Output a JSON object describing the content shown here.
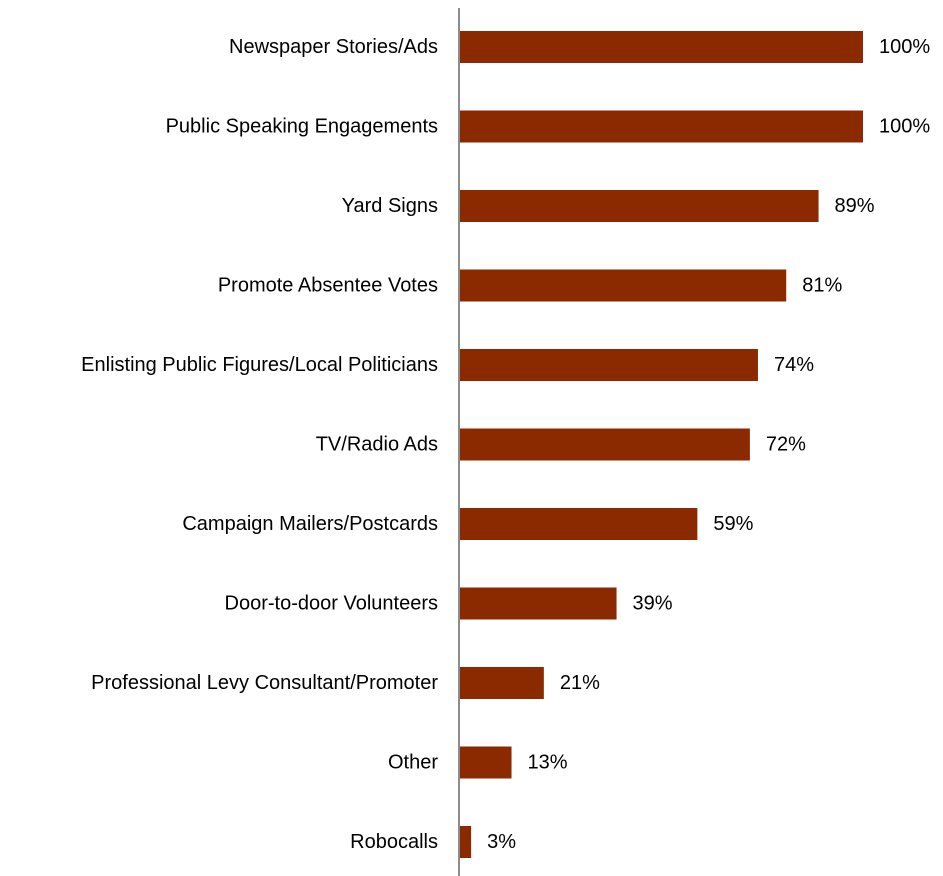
{
  "chart_data": {
    "type": "bar",
    "orientation": "horizontal",
    "title": "",
    "xlabel": "",
    "ylabel": "",
    "xlim": [
      0,
      100
    ],
    "grid": false,
    "legend": "none",
    "bar_color": "#8B2A00",
    "axis_color": "#8C8C8C",
    "value_suffix": "%",
    "categories": [
      "Newspaper Stories/Ads",
      "Public Speaking Engagements",
      "Yard Signs",
      "Promote Absentee Votes",
      "Enlisting Public Figures/Local Politicians",
      "TV/Radio Ads",
      "Campaign Mailers/Postcards",
      "Door-to-door Volunteers",
      "Professional Levy Consultant/Promoter",
      "Other",
      "Robocalls"
    ],
    "values": [
      100,
      100,
      89,
      81,
      74,
      72,
      59,
      39,
      21,
      13,
      3
    ],
    "value_labels": [
      "100%",
      "100%",
      "89%",
      "81%",
      "74%",
      "72%",
      "59%",
      "39%",
      "21%",
      "13%",
      "3%"
    ]
  }
}
